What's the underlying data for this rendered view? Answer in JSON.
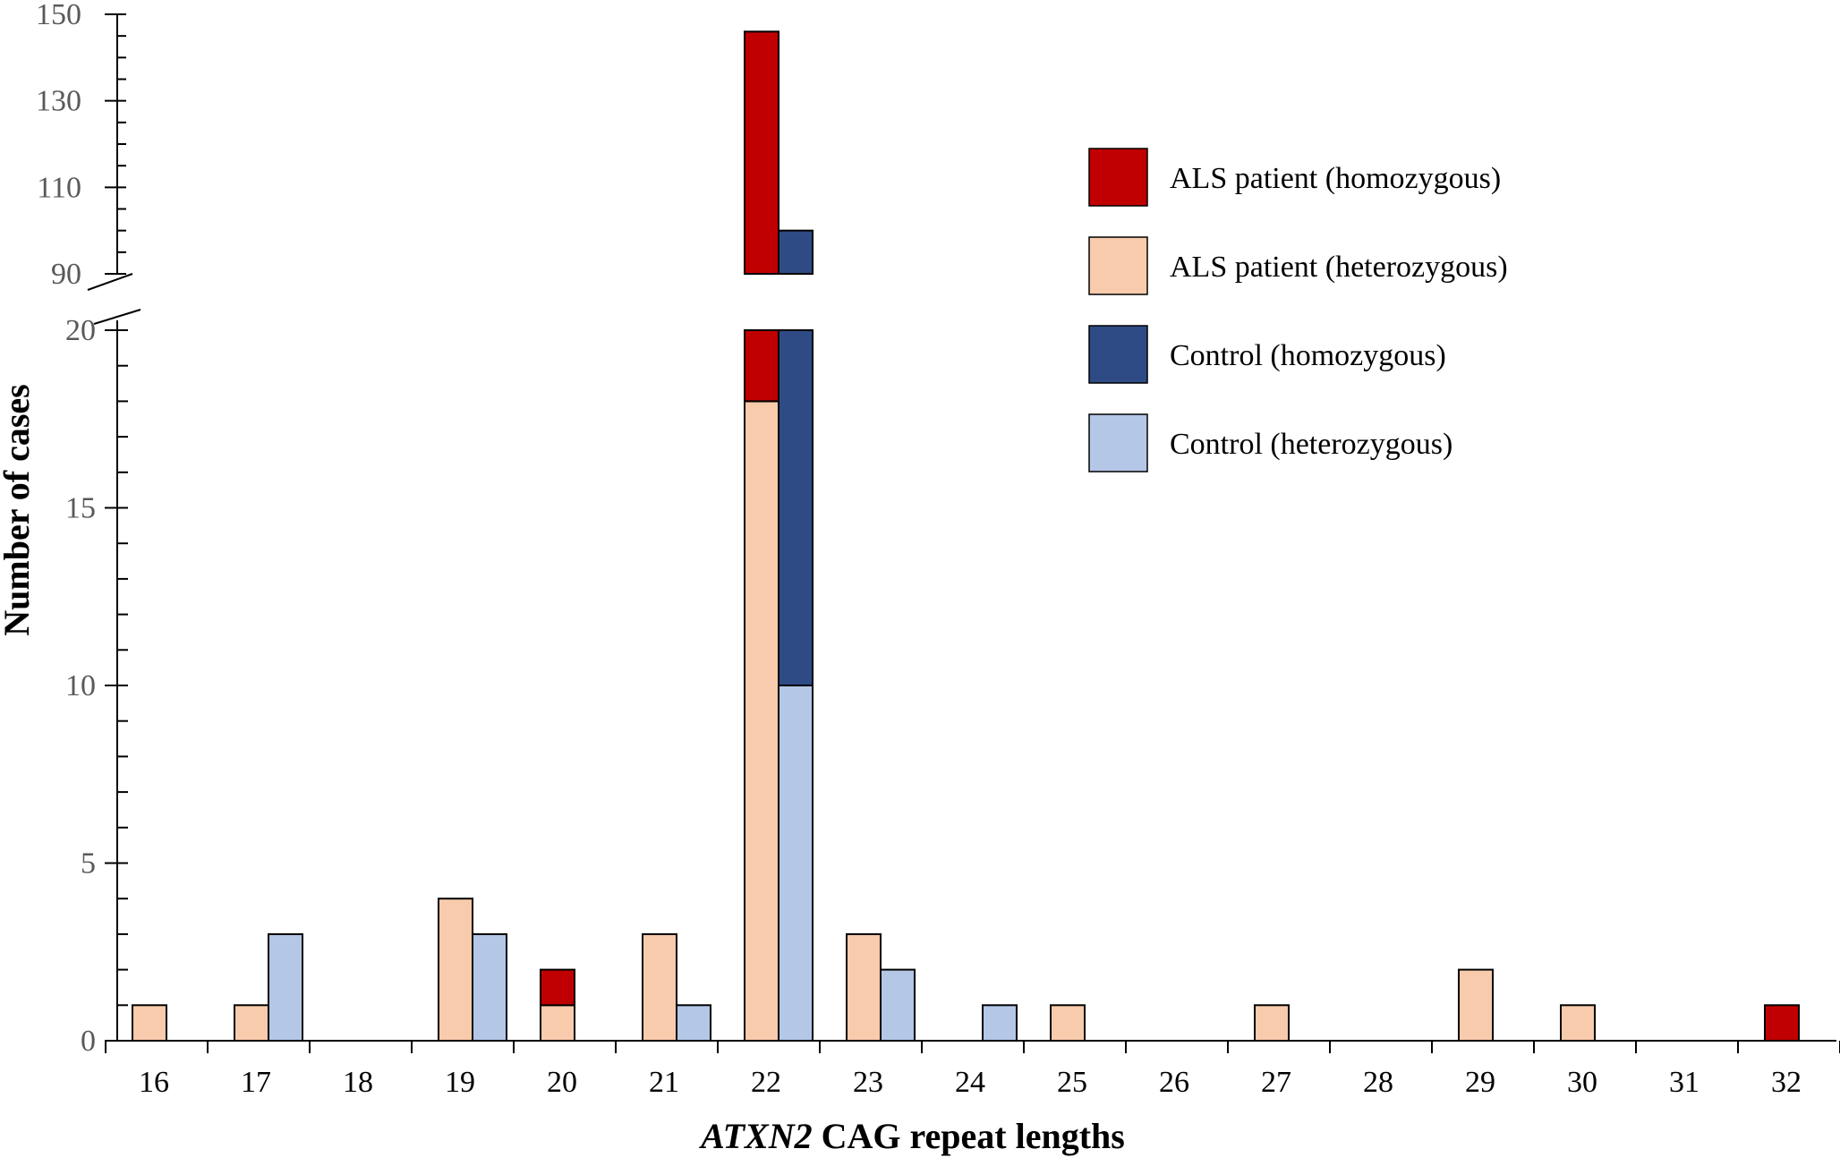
{
  "chart_data": {
    "type": "bar",
    "stacked": true,
    "broken_y_axis": true,
    "xlabel_italic_part": "ATXN2",
    "xlabel_rest": " CAG repeat lengths",
    "ylabel": "Number of cases",
    "categories": [
      "16",
      "17",
      "18",
      "19",
      "20",
      "21",
      "22",
      "23",
      "24",
      "25",
      "26",
      "27",
      "28",
      "29",
      "30",
      "31",
      "32"
    ],
    "ylim_lower": [
      0,
      20
    ],
    "ylim_upper": [
      90,
      150
    ],
    "yticks_lower": [
      0,
      5,
      10,
      15,
      20
    ],
    "yticks_upper": [
      90,
      110,
      130,
      150
    ],
    "grid": false,
    "legend_position": "top-right",
    "groups": [
      {
        "group": "ALS patient",
        "series": [
          {
            "name": "ALS patient (heterozygous)",
            "color": "#F8CBAD",
            "values": [
              1,
              1,
              0,
              4,
              1,
              3,
              18,
              3,
              0,
              1,
              0,
              1,
              0,
              2,
              1,
              0,
              0
            ]
          },
          {
            "name": "ALS patient (homozygous)",
            "color": "#C00000",
            "values": [
              0,
              0,
              0,
              0,
              1,
              0,
              128,
              0,
              0,
              0,
              0,
              0,
              0,
              0,
              0,
              0,
              1
            ]
          }
        ]
      },
      {
        "group": "Control",
        "series": [
          {
            "name": "Control (heterozygous)",
            "color": "#B4C7E7",
            "values": [
              0,
              3,
              0,
              3,
              0,
              1,
              10,
              2,
              1,
              0,
              0,
              0,
              0,
              0,
              0,
              0,
              0
            ]
          },
          {
            "name": "Control (homozygous)",
            "color": "#2F4B85",
            "values": [
              0,
              0,
              0,
              0,
              0,
              0,
              90,
              0,
              0,
              0,
              0,
              0,
              0,
              0,
              0,
              0,
              0
            ]
          }
        ]
      }
    ],
    "legend": [
      {
        "label": "ALS patient (homozygous)",
        "color": "#C00000"
      },
      {
        "label": "ALS patient (heterozygous)",
        "color": "#F8CBAD"
      },
      {
        "label": "Control (homozygous)",
        "color": "#2F4B85"
      },
      {
        "label": "Control (heterozygous)",
        "color": "#B4C7E7"
      }
    ]
  }
}
